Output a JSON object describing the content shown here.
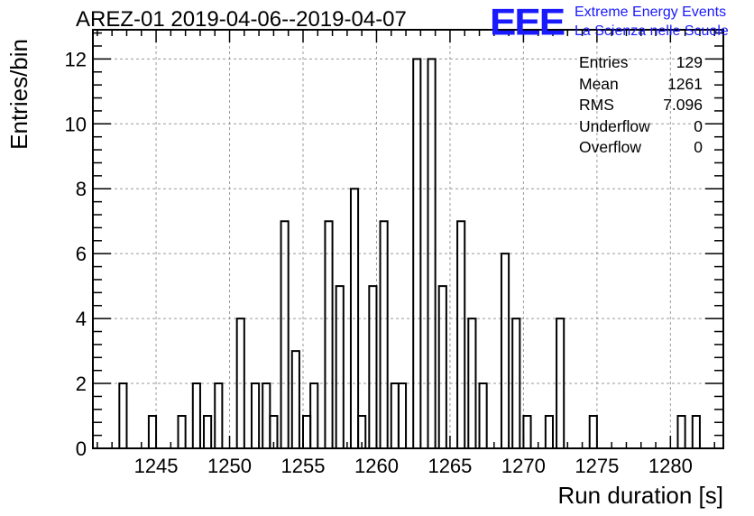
{
  "header": {
    "title": "AREZ-01 2019-04-06--2019-04-07"
  },
  "logo": {
    "mark": "EEE",
    "line1": "Extreme Energy Events",
    "line2": "La Scienza nelle Scuole",
    "color": "#1a1aff"
  },
  "stats": {
    "entries_label": "Entries",
    "entries_value": "129",
    "mean_label": "Mean",
    "mean_value": "1261",
    "rms_label": "RMS",
    "rms_value": "7.096",
    "underflow_label": "Underflow",
    "underflow_value": "0",
    "overflow_label": "Overflow",
    "overflow_value": "0"
  },
  "chart_data": {
    "type": "bar",
    "style": "step-histogram",
    "title": "AREZ-01 2019-04-06--2019-04-07",
    "xlabel": "Run duration [s]",
    "ylabel": "Entries/bin",
    "xlim": [
      1240.7,
      1283.6
    ],
    "ylim": [
      0,
      12.9
    ],
    "grid": true,
    "bin_width": 0.5,
    "x_ticks": [
      1245,
      1250,
      1255,
      1260,
      1265,
      1270,
      1275,
      1280
    ],
    "y_ticks": [
      0,
      2,
      4,
      6,
      8,
      10,
      12
    ],
    "bins": [
      {
        "x": 1242.75,
        "y": 2
      },
      {
        "x": 1244.75,
        "y": 1
      },
      {
        "x": 1246.75,
        "y": 1
      },
      {
        "x": 1247.75,
        "y": 2
      },
      {
        "x": 1248.5,
        "y": 1
      },
      {
        "x": 1249.25,
        "y": 2
      },
      {
        "x": 1250.75,
        "y": 4
      },
      {
        "x": 1251.75,
        "y": 2
      },
      {
        "x": 1252.5,
        "y": 2
      },
      {
        "x": 1253.0,
        "y": 1
      },
      {
        "x": 1253.75,
        "y": 7
      },
      {
        "x": 1254.5,
        "y": 3
      },
      {
        "x": 1255.25,
        "y": 1
      },
      {
        "x": 1255.75,
        "y": 2
      },
      {
        "x": 1256.75,
        "y": 7
      },
      {
        "x": 1257.5,
        "y": 5
      },
      {
        "x": 1258.5,
        "y": 8
      },
      {
        "x": 1259.0,
        "y": 1
      },
      {
        "x": 1259.75,
        "y": 5
      },
      {
        "x": 1260.5,
        "y": 7
      },
      {
        "x": 1261.25,
        "y": 2
      },
      {
        "x": 1261.75,
        "y": 2
      },
      {
        "x": 1262.75,
        "y": 12
      },
      {
        "x": 1263.75,
        "y": 12
      },
      {
        "x": 1264.5,
        "y": 5
      },
      {
        "x": 1265.75,
        "y": 7
      },
      {
        "x": 1266.5,
        "y": 4
      },
      {
        "x": 1267.25,
        "y": 2
      },
      {
        "x": 1268.75,
        "y": 6
      },
      {
        "x": 1269.5,
        "y": 4
      },
      {
        "x": 1270.25,
        "y": 1
      },
      {
        "x": 1271.75,
        "y": 1
      },
      {
        "x": 1272.5,
        "y": 4
      },
      {
        "x": 1274.75,
        "y": 1
      },
      {
        "x": 1280.75,
        "y": 1
      },
      {
        "x": 1281.75,
        "y": 1
      }
    ]
  }
}
